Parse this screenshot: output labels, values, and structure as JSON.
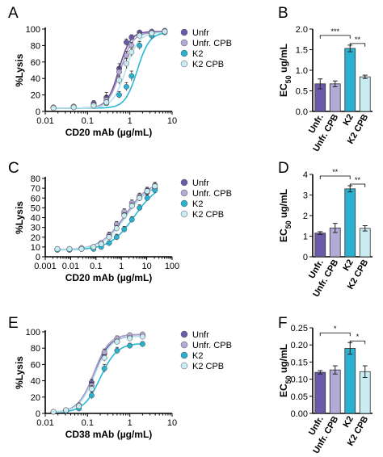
{
  "colors": {
    "Unfr": "#6a5aa8",
    "Unfr. CPB": "#b3aad6",
    "K2": "#2bb0cf",
    "K2 CPB": "#c9ecf3",
    "line_Unfr": "#6a4f9a",
    "line_UnfrCPB": "#a89cc9",
    "line_K2": "#2bb8d6",
    "line_K2CPB": "#b5e3ee"
  },
  "chart_data": [
    {
      "panel": "A",
      "type": "scatter",
      "xlabel": "CD20 mAb (µg/mL)",
      "ylabel": "%Lysis",
      "xscale": "log",
      "xlim": [
        0.01,
        10
      ],
      "ylim": [
        0,
        100
      ],
      "xticks": [
        "0.01",
        "0.1",
        "1",
        "10"
      ],
      "yticks": [
        "0",
        "20",
        "40",
        "60",
        "80",
        "100"
      ],
      "legend": "top-right",
      "x": [
        0.0156,
        0.047,
        0.14,
        0.28,
        0.56,
        0.83,
        1.1,
        1.7,
        3.3,
        6.7
      ],
      "series": [
        {
          "name": "Unfr",
          "values": [
            5,
            6,
            10,
            17,
            52,
            84,
            90,
            96,
            97,
            98
          ],
          "err": [
            2,
            2,
            3,
            6,
            6,
            4,
            3,
            2,
            2,
            1
          ],
          "ec50": 0.55,
          "hill": 3.2,
          "bottom": 4,
          "top": 97
        },
        {
          "name": "Unfr. CPB",
          "values": [
            5,
            6,
            8,
            14,
            48,
            68,
            80,
            93,
            95,
            97
          ],
          "err": [
            2,
            2,
            3,
            5,
            6,
            5,
            4,
            3,
            2,
            1
          ],
          "ec50": 0.6,
          "hill": 3.0,
          "bottom": 4,
          "top": 96
        },
        {
          "name": "K2",
          "values": [
            4,
            5,
            7,
            10,
            20,
            30,
            43,
            80,
            92,
            96
          ],
          "err": [
            1,
            2,
            2,
            3,
            4,
            5,
            6,
            5,
            3,
            2
          ],
          "ec50": 1.5,
          "hill": 3.0,
          "bottom": 4,
          "top": 96
        },
        {
          "name": "K2 CPB",
          "values": [
            4,
            5,
            7,
            11,
            38,
            58,
            72,
            92,
            95,
            97
          ],
          "err": [
            1,
            2,
            2,
            3,
            5,
            6,
            5,
            3,
            2,
            1
          ],
          "ec50": 0.8,
          "hill": 2.8,
          "bottom": 4,
          "top": 96
        }
      ]
    },
    {
      "panel": "B",
      "type": "bar",
      "ylabel": "EC50 ug/mL",
      "ylim": [
        0,
        2.0
      ],
      "yticks": [
        "0.0",
        "0.5",
        "1.0",
        "1.5",
        "2.0"
      ],
      "categories": [
        "Unfr.",
        "Unfr. CPB",
        "K2",
        "K2 CPB"
      ],
      "values": [
        0.67,
        0.67,
        1.53,
        0.84
      ],
      "err": [
        0.12,
        0.07,
        0.08,
        0.04
      ],
      "significance": [
        {
          "from": 0,
          "to": 2,
          "label": "***"
        },
        {
          "from": 2,
          "to": 3,
          "label": "**"
        }
      ]
    },
    {
      "panel": "C",
      "type": "scatter",
      "xlabel": "CD20 mAb (µg/mL)",
      "ylabel": "%Lysis",
      "xscale": "log",
      "xlim": [
        0.001,
        100
      ],
      "ylim": [
        0,
        80
      ],
      "xticks": [
        "0.001",
        "0.01",
        "0.1",
        "1",
        "10",
        "100"
      ],
      "yticks": [
        "0",
        "10",
        "20",
        "30",
        "40",
        "50",
        "60",
        "70",
        "80"
      ],
      "legend": "top-right",
      "x": [
        0.003,
        0.009,
        0.027,
        0.08,
        0.16,
        0.33,
        0.65,
        1.3,
        2.6,
        5.2,
        10.4,
        21
      ],
      "series": [
        {
          "name": "Unfr",
          "values": [
            8,
            8,
            8,
            10,
            14,
            22,
            33,
            44,
            52,
            60,
            66,
            70
          ],
          "err": [
            1,
            1,
            1,
            2,
            2,
            3,
            3,
            3,
            3,
            3,
            3,
            3
          ],
          "ec50": 1.5,
          "hill": 0.9,
          "bottom": 7,
          "top": 76
        },
        {
          "name": "Unfr. CPB",
          "values": [
            8,
            8,
            9,
            10,
            14,
            22,
            33,
            46,
            55,
            62,
            68,
            73
          ],
          "err": [
            1,
            1,
            1,
            2,
            2,
            3,
            3,
            3,
            3,
            3,
            3,
            3
          ],
          "ec50": 1.4,
          "hill": 0.9,
          "bottom": 7,
          "top": 78
        },
        {
          "name": "K2",
          "values": [
            7,
            7,
            8,
            8,
            10,
            14,
            20,
            28,
            38,
            50,
            60,
            68
          ],
          "err": [
            1,
            1,
            1,
            1,
            2,
            2,
            3,
            3,
            3,
            3,
            3,
            3
          ],
          "ec50": 3.3,
          "hill": 0.9,
          "bottom": 7,
          "top": 76
        },
        {
          "name": "K2 CPB",
          "values": [
            8,
            8,
            8,
            10,
            13,
            20,
            29,
            42,
            52,
            60,
            67,
            72
          ],
          "err": [
            1,
            1,
            1,
            2,
            2,
            3,
            3,
            3,
            3,
            3,
            3,
            3
          ],
          "ec50": 1.6,
          "hill": 0.9,
          "bottom": 7,
          "top": 77
        }
      ]
    },
    {
      "panel": "D",
      "type": "bar",
      "ylabel": "EC50 ug/mL",
      "ylim": [
        0,
        4
      ],
      "yticks": [
        "0",
        "1",
        "2",
        "3",
        "4"
      ],
      "categories": [
        "Unfr.",
        "Unfr. CPB",
        "K2",
        "K2 CPB"
      ],
      "values": [
        1.15,
        1.4,
        3.3,
        1.38
      ],
      "err": [
        0.07,
        0.22,
        0.15,
        0.13
      ],
      "significance": [
        {
          "from": 0,
          "to": 2,
          "label": "**"
        },
        {
          "from": 2,
          "to": 3,
          "label": "**"
        }
      ]
    },
    {
      "panel": "E",
      "type": "scatter",
      "xlabel": "CD38 mAb (µg/mL)",
      "ylabel": "%Lysis",
      "xscale": "log",
      "xlim": [
        0.01,
        10
      ],
      "ylim": [
        0,
        100
      ],
      "xticks": [
        "0.01",
        "0.1",
        "1",
        "10"
      ],
      "yticks": [
        "0",
        "20",
        "40",
        "60",
        "80",
        "100"
      ],
      "legend": "top-right",
      "x": [
        0.0156,
        0.031,
        0.0625,
        0.125,
        0.25,
        0.5,
        1.0,
        2.0
      ],
      "series": [
        {
          "name": "Unfr",
          "values": [
            2,
            4,
            10,
            38,
            73,
            88,
            93,
            95
          ],
          "err": [
            1,
            1,
            2,
            4,
            4,
            3,
            3,
            2
          ],
          "ec50": 0.14,
          "hill": 2.3,
          "bottom": 1,
          "top": 95
        },
        {
          "name": "Unfr. CPB",
          "values": [
            2,
            4,
            10,
            34,
            75,
            92,
            96,
            97
          ],
          "err": [
            1,
            1,
            2,
            4,
            4,
            3,
            2,
            2
          ],
          "ec50": 0.14,
          "hill": 2.4,
          "bottom": 1,
          "top": 97
        },
        {
          "name": "K2",
          "values": [
            2,
            3,
            6,
            22,
            55,
            77,
            83,
            85
          ],
          "err": [
            1,
            1,
            2,
            4,
            5,
            4,
            3,
            3
          ],
          "ec50": 0.2,
          "hill": 2.2,
          "bottom": 1,
          "top": 86
        },
        {
          "name": "K2 CPB",
          "values": [
            2,
            4,
            9,
            30,
            68,
            88,
            92,
            94
          ],
          "err": [
            1,
            1,
            2,
            4,
            4,
            3,
            3,
            2
          ],
          "ec50": 0.15,
          "hill": 2.3,
          "bottom": 1,
          "top": 95
        }
      ]
    },
    {
      "panel": "F",
      "type": "bar",
      "ylabel": "EC50 ug/mL",
      "ylim": [
        0,
        0.25
      ],
      "yticks": [
        "0.00",
        "0.05",
        "0.10",
        "0.15",
        "0.20",
        "0.25"
      ],
      "categories": [
        "Unfr.",
        "Unfr. CPB",
        "K2",
        "K2 CPB"
      ],
      "values": [
        0.12,
        0.127,
        0.19,
        0.122
      ],
      "err": [
        0.005,
        0.012,
        0.017,
        0.017
      ],
      "significance": [
        {
          "from": 0,
          "to": 2,
          "label": "*"
        },
        {
          "from": 2,
          "to": 3,
          "label": "*"
        }
      ]
    }
  ]
}
